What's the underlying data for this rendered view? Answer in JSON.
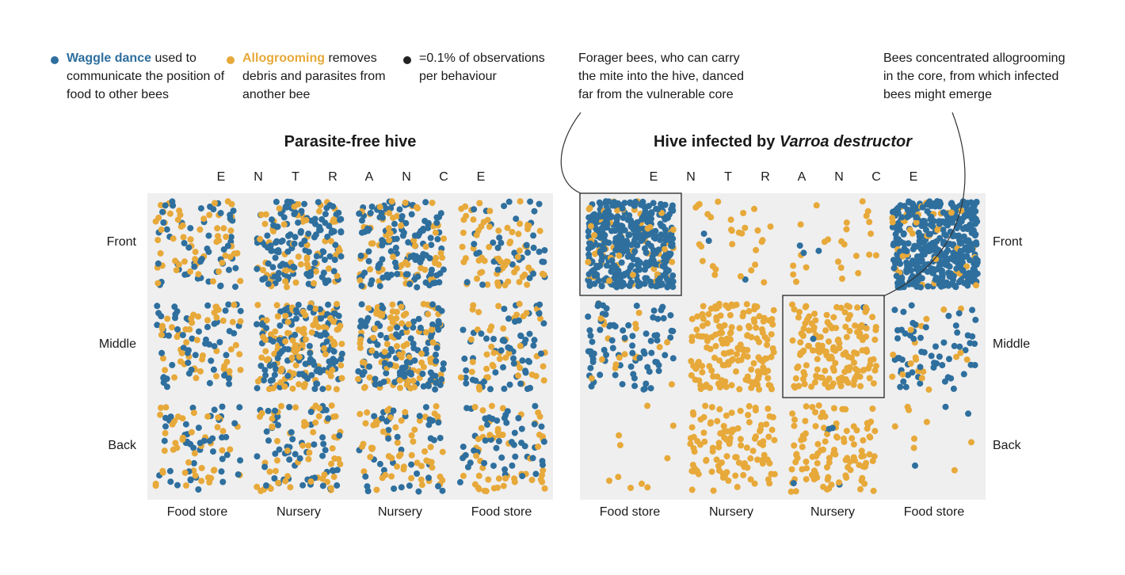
{
  "legend": {
    "waggle": {
      "label": "Waggle dance",
      "text": "used to communicate the position of food to other bees",
      "color": "#2e6f9e"
    },
    "allo": {
      "label": "Allogrooming",
      "text": "removes debris and parasites from another bee",
      "color": "#e7a93a"
    },
    "scale": {
      "text": "=0.1% of observations per behaviour",
      "color": "#222222"
    }
  },
  "annotations": {
    "forager": [
      "Forager bees, who can carry",
      "the mite into the hive, danced",
      "far from the vulnerable core"
    ],
    "core": [
      "Bees concentrated allogrooming",
      "in the core, from which infected",
      "bees might emerge"
    ]
  },
  "chart_data": {
    "type": "scatter",
    "description_unit": "each dot = 0.1% of observations per behaviour",
    "series": [
      {
        "name": "Waggle dance",
        "color": "#2e6f9e"
      },
      {
        "name": "Allogrooming",
        "color": "#e7a93a"
      }
    ],
    "rows": [
      "Front",
      "Middle",
      "Back"
    ],
    "columns": [
      "Food store",
      "Nursery",
      "Nursery",
      "Food store"
    ],
    "entrance_letters": [
      "E",
      "N",
      "T",
      "R",
      "A",
      "N",
      "C",
      "E"
    ],
    "panels": [
      {
        "title": "Parasite-free hive",
        "title_italic": "",
        "counts_waggle": [
          [
            55,
            130,
            120,
            40
          ],
          [
            55,
            120,
            125,
            60
          ],
          [
            45,
            55,
            40,
            50
          ]
        ],
        "counts_allo": [
          [
            60,
            65,
            65,
            70
          ],
          [
            50,
            110,
            100,
            45
          ],
          [
            45,
            60,
            60,
            55
          ]
        ]
      },
      {
        "title": "Hive infected by ",
        "title_italic": "Varroa destructor",
        "counts_waggle": [
          [
            390,
            3,
            3,
            420
          ],
          [
            80,
            0,
            3,
            60
          ],
          [
            0,
            0,
            5,
            3
          ]
        ],
        "counts_allo": [
          [
            60,
            30,
            25,
            40
          ],
          [
            20,
            170,
            160,
            20
          ],
          [
            10,
            110,
            110,
            8
          ]
        ]
      }
    ],
    "highlighted_cells": [
      {
        "panel": 1,
        "row": 0,
        "col": 0
      },
      {
        "panel": 1,
        "row": 1,
        "col": 2
      }
    ]
  }
}
